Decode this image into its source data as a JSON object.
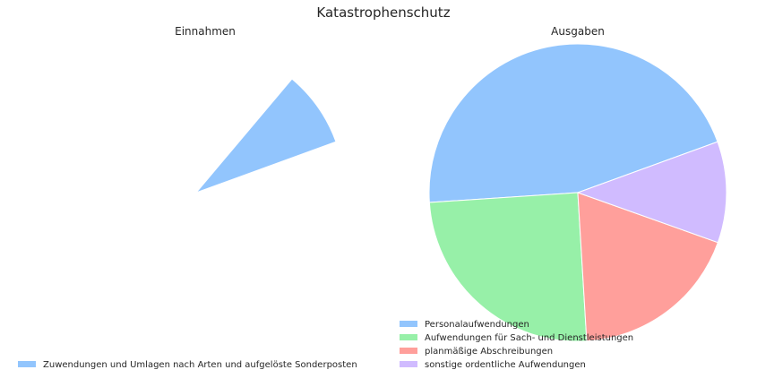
{
  "title": "Katastrophenschutz",
  "colors": {
    "blue": "#92c5fd",
    "green": "#97f0a8",
    "red": "#ff9f9b",
    "purple": "#d0bbff"
  },
  "chart_data": [
    {
      "type": "pie",
      "title": "Einnahmen",
      "slices": [
        {
          "label": "Zuwendungen und Umlagen nach Arten und aufgelöste Sonderposten",
          "value": 1,
          "share_of_circle": 0.083,
          "color": "#92c5fd"
        }
      ],
      "start_angle_deg": 20,
      "counterclock": true,
      "exploded_single_wedge": true,
      "legend_position": "bottom-left"
    },
    {
      "type": "pie",
      "title": "Ausgaben",
      "slices": [
        {
          "label": "Personalaufwendungen",
          "value": 45.5,
          "color": "#92c5fd"
        },
        {
          "label": "Aufwendungen für Sach- und Dienstleistungen",
          "value": 24.9,
          "color": "#97f0a8"
        },
        {
          "label": "planmäßige Abschreibungen",
          "value": 18.6,
          "color": "#ff9f9b"
        },
        {
          "label": "sonstige ordentliche Aufwendungen",
          "value": 11.0,
          "color": "#d0bbff"
        }
      ],
      "start_angle_deg": 20,
      "counterclock": true,
      "legend_position": "bottom-left"
    }
  ]
}
